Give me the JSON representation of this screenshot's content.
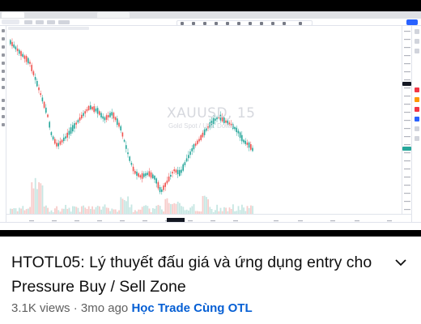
{
  "video": {
    "title": "HTOTL05: Lý thuyết đấu giá và ứng dụng entry cho Pressure Buy / Sell Zone",
    "views": "3.1K views",
    "separator": "·",
    "age": "3mo ago",
    "channel": "Học Trade Cùng OTL"
  },
  "chart": {
    "watermark_symbol": "XAUUSD, 15",
    "watermark_description": "Gold Spot / U.S. Dollar"
  },
  "colors": {
    "candle_up": "#26a69a",
    "candle_down": "#ef5350",
    "volume_up": "#c7e7e3",
    "volume_down": "#f7cdcb",
    "publish_button": "#2962ff",
    "current_price_tag": "#26a69a",
    "channel_link": "#065fd4"
  },
  "icons": {
    "expand": "chevron-down-icon"
  }
}
